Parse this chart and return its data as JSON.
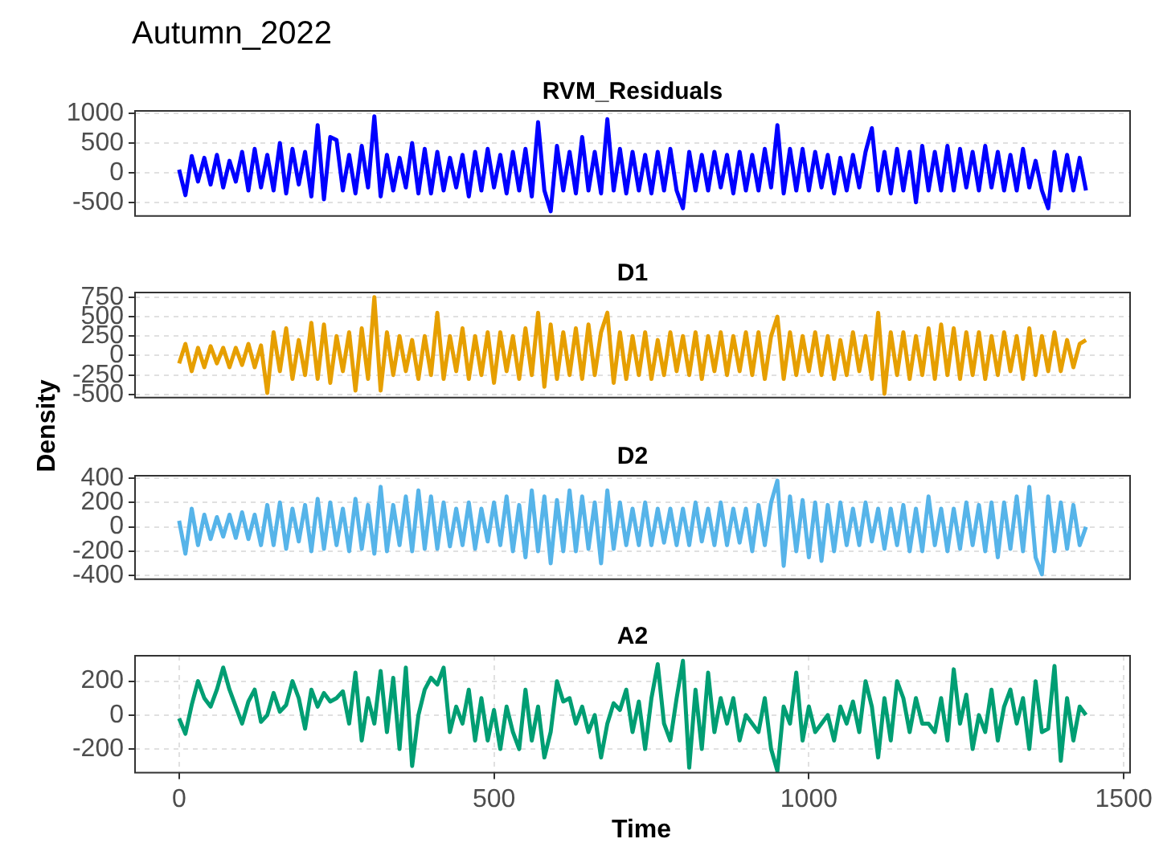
{
  "chart_data": [
    {
      "type": "line",
      "title": "Autumn_2022",
      "subtitle": "RVM_Residuals",
      "grid": true,
      "tick_labels": "y",
      "xlim": [
        -70,
        1510
      ],
      "ylim": [
        -730,
        1040
      ],
      "yticks": [
        -500,
        0,
        500,
        1000
      ],
      "x": [
        0,
        10,
        20,
        30,
        40,
        50,
        60,
        70,
        80,
        90,
        100,
        110,
        120,
        130,
        140,
        150,
        160,
        170,
        180,
        190,
        200,
        210,
        220,
        230,
        240,
        250,
        260,
        270,
        280,
        290,
        300,
        310,
        320,
        330,
        340,
        350,
        360,
        370,
        380,
        390,
        400,
        410,
        420,
        430,
        440,
        450,
        460,
        470,
        480,
        490,
        500,
        510,
        520,
        530,
        540,
        550,
        560,
        570,
        580,
        590,
        600,
        610,
        620,
        630,
        640,
        650,
        660,
        670,
        680,
        690,
        700,
        710,
        720,
        730,
        740,
        750,
        760,
        770,
        780,
        790,
        800,
        810,
        820,
        830,
        840,
        850,
        860,
        870,
        880,
        890,
        900,
        910,
        920,
        930,
        940,
        950,
        960,
        970,
        980,
        990,
        1000,
        1010,
        1020,
        1030,
        1040,
        1050,
        1060,
        1070,
        1080,
        1090,
        1100,
        1110,
        1120,
        1130,
        1140,
        1150,
        1160,
        1170,
        1180,
        1190,
        1200,
        1210,
        1220,
        1230,
        1240,
        1250,
        1260,
        1270,
        1280,
        1290,
        1300,
        1310,
        1320,
        1330,
        1340,
        1350,
        1360,
        1370,
        1380,
        1390,
        1400,
        1410,
        1420,
        1430,
        1440
      ],
      "series": [
        {
          "color": "#0000ff",
          "values": [
            50,
            -380,
            280,
            -150,
            250,
            -200,
            300,
            -250,
            200,
            -150,
            350,
            -300,
            400,
            -250,
            300,
            -300,
            500,
            -350,
            400,
            -200,
            350,
            -400,
            800,
            -450,
            600,
            550,
            -300,
            300,
            -350,
            450,
            -250,
            950,
            -400,
            300,
            -300,
            250,
            -250,
            500,
            -350,
            400,
            -350,
            350,
            -300,
            250,
            -250,
            300,
            -400,
            350,
            -300,
            400,
            -250,
            300,
            -350,
            350,
            -300,
            400,
            -400,
            850,
            -300,
            -650,
            450,
            -300,
            350,
            -350,
            600,
            -300,
            350,
            -350,
            900,
            -300,
            400,
            -350,
            350,
            -300,
            300,
            -350,
            350,
            -300,
            400,
            -300,
            -600,
            350,
            -300,
            300,
            -300,
            350,
            -250,
            300,
            -350,
            350,
            -300,
            300,
            -300,
            400,
            -250,
            800,
            -350,
            400,
            -300,
            400,
            -300,
            350,
            -250,
            300,
            -350,
            250,
            -300,
            300,
            -250,
            350,
            750,
            -300,
            350,
            -350,
            400,
            -300,
            350,
            -500,
            450,
            -300,
            350,
            -300,
            450,
            -300,
            400,
            -250,
            350,
            -300,
            450,
            -250,
            350,
            -300,
            300,
            -300,
            400,
            -250,
            200,
            -300,
            -600,
            350,
            -300,
            300,
            -300,
            250,
            -300
          ]
        }
      ]
    },
    {
      "type": "line",
      "title": "D1",
      "grid": true,
      "tick_labels": "y",
      "xlim": [
        -70,
        1510
      ],
      "ylim": [
        -540,
        810
      ],
      "yticks": [
        -500,
        -250,
        0,
        250,
        500,
        750
      ],
      "x": [
        0,
        10,
        20,
        30,
        40,
        50,
        60,
        70,
        80,
        90,
        100,
        110,
        120,
        130,
        140,
        150,
        160,
        170,
        180,
        190,
        200,
        210,
        220,
        230,
        240,
        250,
        260,
        270,
        280,
        290,
        300,
        310,
        320,
        330,
        340,
        350,
        360,
        370,
        380,
        390,
        400,
        410,
        420,
        430,
        440,
        450,
        460,
        470,
        480,
        490,
        500,
        510,
        520,
        530,
        540,
        550,
        560,
        570,
        580,
        590,
        600,
        610,
        620,
        630,
        640,
        650,
        660,
        670,
        680,
        690,
        700,
        710,
        720,
        730,
        740,
        750,
        760,
        770,
        780,
        790,
        800,
        810,
        820,
        830,
        840,
        850,
        860,
        870,
        880,
        890,
        900,
        910,
        920,
        930,
        940,
        950,
        960,
        970,
        980,
        990,
        1000,
        1010,
        1020,
        1030,
        1040,
        1050,
        1060,
        1070,
        1080,
        1090,
        1100,
        1110,
        1120,
        1130,
        1140,
        1150,
        1160,
        1170,
        1180,
        1190,
        1200,
        1210,
        1220,
        1230,
        1240,
        1250,
        1260,
        1270,
        1280,
        1290,
        1300,
        1310,
        1320,
        1330,
        1340,
        1350,
        1360,
        1370,
        1380,
        1390,
        1400,
        1410,
        1420,
        1430,
        1440
      ],
      "series": [
        {
          "color": "#e69f00",
          "values": [
            -100,
            150,
            -200,
            100,
            -150,
            120,
            -100,
            100,
            -150,
            100,
            -120,
            150,
            -150,
            130,
            -480,
            300,
            -200,
            350,
            -300,
            200,
            -250,
            420,
            -300,
            400,
            -350,
            250,
            -200,
            300,
            -450,
            350,
            -300,
            750,
            -450,
            300,
            -250,
            250,
            -200,
            200,
            -300,
            250,
            -250,
            550,
            -300,
            250,
            -200,
            350,
            -300,
            250,
            -250,
            300,
            -350,
            300,
            -200,
            250,
            -300,
            350,
            -250,
            550,
            -400,
            400,
            -300,
            300,
            -250,
            350,
            -300,
            400,
            -250,
            300,
            550,
            -350,
            300,
            -300,
            250,
            -250,
            300,
            -300,
            200,
            -250,
            300,
            -200,
            250,
            -250,
            300,
            -300,
            250,
            -200,
            300,
            -250,
            250,
            -200,
            300,
            -250,
            300,
            -300,
            250,
            500,
            -300,
            300,
            -250,
            250,
            -200,
            300,
            -250,
            250,
            -300,
            200,
            -250,
            300,
            -200,
            250,
            -300,
            550,
            -490,
            300,
            -250,
            300,
            -300,
            250,
            -250,
            350,
            -300,
            400,
            -250,
            350,
            -300,
            300,
            -250,
            300,
            -300,
            250,
            -250,
            300,
            -200,
            250,
            -300,
            350,
            -250,
            250,
            -200,
            300,
            -200,
            200,
            -150,
            150,
            200
          ]
        }
      ]
    },
    {
      "type": "line",
      "title": "D2",
      "ylabel": "Density",
      "grid": true,
      "tick_labels": "y",
      "xlim": [
        -70,
        1510
      ],
      "ylim": [
        -430,
        420
      ],
      "yticks": [
        -400,
        -200,
        0,
        200,
        400
      ],
      "x": [
        0,
        10,
        20,
        30,
        40,
        50,
        60,
        70,
        80,
        90,
        100,
        110,
        120,
        130,
        140,
        150,
        160,
        170,
        180,
        190,
        200,
        210,
        220,
        230,
        240,
        250,
        260,
        270,
        280,
        290,
        300,
        310,
        320,
        330,
        340,
        350,
        360,
        370,
        380,
        390,
        400,
        410,
        420,
        430,
        440,
        450,
        460,
        470,
        480,
        490,
        500,
        510,
        520,
        530,
        540,
        550,
        560,
        570,
        580,
        590,
        600,
        610,
        620,
        630,
        640,
        650,
        660,
        670,
        680,
        690,
        700,
        710,
        720,
        730,
        740,
        750,
        760,
        770,
        780,
        790,
        800,
        810,
        820,
        830,
        840,
        850,
        860,
        870,
        880,
        890,
        900,
        910,
        920,
        930,
        940,
        950,
        960,
        970,
        980,
        990,
        1000,
        1010,
        1020,
        1030,
        1040,
        1050,
        1060,
        1070,
        1080,
        1090,
        1100,
        1110,
        1120,
        1130,
        1140,
        1150,
        1160,
        1170,
        1180,
        1190,
        1200,
        1210,
        1220,
        1230,
        1240,
        1250,
        1260,
        1270,
        1280,
        1290,
        1300,
        1310,
        1320,
        1330,
        1340,
        1350,
        1360,
        1370,
        1380,
        1390,
        1400,
        1410,
        1420,
        1430,
        1440
      ],
      "series": [
        {
          "color": "#56b4e9",
          "values": [
            50,
            -220,
            150,
            -150,
            100,
            -100,
            80,
            -80,
            100,
            -90,
            120,
            -100,
            100,
            -150,
            180,
            -150,
            200,
            -180,
            150,
            -120,
            180,
            -200,
            230,
            -180,
            200,
            -150,
            150,
            -200,
            230,
            -180,
            180,
            -220,
            330,
            -200,
            180,
            -150,
            250,
            -200,
            300,
            -180,
            250,
            -180,
            200,
            -160,
            150,
            -150,
            200,
            -180,
            150,
            -120,
            200,
            -150,
            250,
            -200,
            180,
            -250,
            300,
            -200,
            250,
            -300,
            220,
            -200,
            300,
            -200,
            250,
            -180,
            200,
            -300,
            300,
            -180,
            200,
            -150,
            150,
            -150,
            200,
            -150,
            150,
            -130,
            150,
            -150,
            150,
            -150,
            200,
            -120,
            150,
            -150,
            200,
            -150,
            150,
            -130,
            150,
            -200,
            180,
            -150,
            200,
            380,
            -320,
            250,
            -200,
            220,
            -250,
            200,
            -280,
            180,
            -200,
            200,
            -150,
            150,
            -150,
            200,
            -120,
            150,
            -180,
            150,
            -150,
            180,
            -200,
            150,
            -200,
            250,
            -150,
            150,
            -200,
            150,
            -180,
            200,
            -150,
            180,
            -200,
            200,
            -250,
            200,
            -180,
            250,
            -200,
            330,
            -250,
            -390,
            250,
            -200,
            200,
            -180,
            180,
            -150,
            0
          ]
        }
      ]
    },
    {
      "type": "line",
      "title": "A2",
      "xlabel": "Time",
      "grid": true,
      "xlim": [
        -70,
        1510
      ],
      "xticks": [
        0,
        500,
        1000,
        1500
      ],
      "ylim": [
        -340,
        350
      ],
      "yticks": [
        -200,
        0,
        200
      ],
      "x": [
        0,
        10,
        20,
        30,
        40,
        50,
        60,
        70,
        80,
        90,
        100,
        110,
        120,
        130,
        140,
        150,
        160,
        170,
        180,
        190,
        200,
        210,
        220,
        230,
        240,
        250,
        260,
        270,
        280,
        290,
        300,
        310,
        320,
        330,
        340,
        350,
        360,
        370,
        380,
        390,
        400,
        410,
        420,
        430,
        440,
        450,
        460,
        470,
        480,
        490,
        500,
        510,
        520,
        530,
        540,
        550,
        560,
        570,
        580,
        590,
        600,
        610,
        620,
        630,
        640,
        650,
        660,
        670,
        680,
        690,
        700,
        710,
        720,
        730,
        740,
        750,
        760,
        770,
        780,
        790,
        800,
        810,
        820,
        830,
        840,
        850,
        860,
        870,
        880,
        890,
        900,
        910,
        920,
        930,
        940,
        950,
        960,
        970,
        980,
        990,
        1000,
        1010,
        1020,
        1030,
        1040,
        1050,
        1060,
        1070,
        1080,
        1090,
        1100,
        1110,
        1120,
        1130,
        1140,
        1150,
        1160,
        1170,
        1180,
        1190,
        1200,
        1210,
        1220,
        1230,
        1240,
        1250,
        1260,
        1270,
        1280,
        1290,
        1300,
        1310,
        1320,
        1330,
        1340,
        1350,
        1360,
        1370,
        1380,
        1390,
        1400,
        1410,
        1420,
        1430,
        1440
      ],
      "series": [
        {
          "color": "#009e73",
          "values": [
            -20,
            -110,
            60,
            200,
            100,
            50,
            150,
            280,
            150,
            50,
            -50,
            80,
            150,
            -40,
            0,
            130,
            20,
            60,
            200,
            100,
            -80,
            150,
            50,
            130,
            80,
            100,
            140,
            -50,
            250,
            -150,
            100,
            -50,
            260,
            -100,
            220,
            -200,
            280,
            -300,
            0,
            150,
            220,
            180,
            280,
            -100,
            50,
            -50,
            150,
            -150,
            100,
            -150,
            30,
            -200,
            50,
            -100,
            -200,
            150,
            -150,
            50,
            -250,
            -100,
            200,
            80,
            100,
            -50,
            50,
            -100,
            0,
            -250,
            -50,
            70,
            30,
            150,
            -100,
            80,
            -200,
            100,
            300,
            -50,
            -150,
            100,
            320,
            -310,
            150,
            -200,
            250,
            -100,
            100,
            -50,
            100,
            -150,
            0,
            -50,
            -100,
            100,
            -200,
            -330,
            50,
            -50,
            250,
            -150,
            50,
            -100,
            -50,
            0,
            -150,
            50,
            -50,
            80,
            -100,
            200,
            50,
            -250,
            100,
            -150,
            200,
            100,
            -100,
            100,
            -50,
            -50,
            -100,
            100,
            -150,
            270,
            -50,
            120,
            -200,
            0,
            -100,
            150,
            -150,
            50,
            150,
            -50,
            100,
            -200,
            200,
            -100,
            -80,
            290,
            -270,
            100,
            -150,
            50,
            0
          ]
        }
      ]
    }
  ]
}
